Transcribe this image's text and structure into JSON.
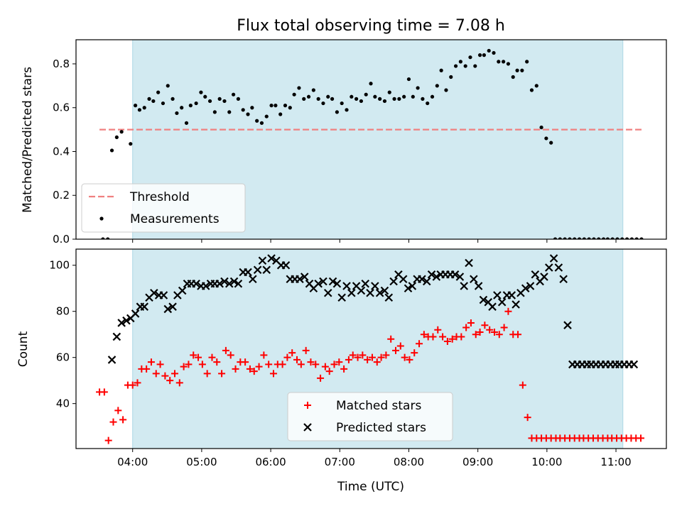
{
  "chart_data": {
    "title": "Flux total observing time = 7.08 h",
    "xlabel": "Time (UTC)",
    "x_ticks": [
      "04:00",
      "05:00",
      "06:00",
      "07:00",
      "08:00",
      "09:00",
      "10:00",
      "11:00"
    ],
    "x_tick_hours": [
      4,
      5,
      6,
      7,
      8,
      9,
      10,
      11
    ],
    "xlim": [
      3.18,
      11.73
    ],
    "shaded_span": [
      4.0,
      11.1
    ],
    "colors": {
      "shade": "#add8e6",
      "threshold": "#f08080",
      "measurements": "#000000",
      "matched": "#ff0000",
      "predicted": "#000000"
    },
    "panels": [
      {
        "type": "scatter",
        "ylabel": "Matched/Predicted stars",
        "ylim": [
          0,
          0.91
        ],
        "y_ticks": [
          "0.0",
          "0.2",
          "0.4",
          "0.6",
          "0.8"
        ],
        "y_tick_values": [
          0.0,
          0.2,
          0.4,
          0.6,
          0.8
        ],
        "threshold": {
          "y": 0.5,
          "x_range": [
            3.52,
            11.37
          ]
        },
        "legend": {
          "position": "lower-left",
          "entries": [
            "Threshold",
            "Measurements"
          ]
        },
        "series": [
          {
            "name": "Measurements",
            "marker": "dot",
            "x": [
              3.57,
              3.64,
              3.7,
              3.77,
              3.84,
              3.97,
              4.04,
              4.1,
              4.17,
              4.24,
              4.3,
              4.37,
              4.44,
              4.51,
              4.58,
              4.64,
              4.71,
              4.78,
              4.84,
              4.92,
              4.99,
              5.05,
              5.12,
              5.19,
              5.26,
              5.33,
              5.4,
              5.46,
              5.53,
              5.6,
              5.67,
              5.73,
              5.8,
              5.87,
              5.94,
              6.01,
              6.07,
              6.14,
              6.21,
              6.28,
              6.34,
              6.41,
              6.48,
              6.55,
              6.62,
              6.69,
              6.76,
              6.83,
              6.89,
              6.96,
              7.03,
              7.1,
              7.17,
              7.24,
              7.31,
              7.38,
              7.45,
              7.51,
              7.58,
              7.65,
              7.72,
              7.79,
              7.86,
              7.93,
              8.0,
              8.06,
              8.13,
              8.2,
              8.27,
              8.34,
              8.41,
              8.47,
              8.54,
              8.61,
              8.68,
              8.75,
              8.82,
              8.89,
              8.96,
              9.03,
              9.09,
              9.16,
              9.23,
              9.3,
              9.37,
              9.44,
              9.51,
              9.57,
              9.64,
              9.71,
              9.78,
              9.85,
              9.92,
              9.99,
              10.06,
              10.12,
              10.19,
              10.26,
              10.33,
              10.4,
              10.47,
              10.54,
              10.61,
              10.68,
              10.75,
              10.82,
              10.88,
              10.95,
              11.02,
              11.09,
              11.16,
              11.23,
              11.3,
              11.37
            ],
            "y": [
              0.0,
              0.0,
              0.405,
              0.465,
              0.49,
              0.435,
              0.61,
              0.59,
              0.6,
              0.64,
              0.63,
              0.67,
              0.62,
              0.7,
              0.64,
              0.575,
              0.6,
              0.53,
              0.61,
              0.62,
              0.67,
              0.65,
              0.63,
              0.58,
              0.64,
              0.63,
              0.58,
              0.66,
              0.64,
              0.59,
              0.57,
              0.6,
              0.54,
              0.53,
              0.56,
              0.61,
              0.61,
              0.57,
              0.61,
              0.6,
              0.66,
              0.69,
              0.64,
              0.65,
              0.68,
              0.64,
              0.62,
              0.65,
              0.64,
              0.58,
              0.62,
              0.59,
              0.65,
              0.64,
              0.63,
              0.66,
              0.71,
              0.65,
              0.64,
              0.63,
              0.67,
              0.64,
              0.64,
              0.65,
              0.73,
              0.65,
              0.69,
              0.64,
              0.62,
              0.65,
              0.7,
              0.77,
              0.68,
              0.74,
              0.79,
              0.81,
              0.79,
              0.83,
              0.79,
              0.84,
              0.84,
              0.86,
              0.85,
              0.81,
              0.81,
              0.8,
              0.74,
              0.77,
              0.77,
              0.81,
              0.68,
              0.7,
              0.51,
              0.46,
              0.44,
              0.0,
              0.0,
              0.0,
              0.0,
              0.0,
              0.0,
              0.0,
              0.0,
              0.0,
              0.0,
              0.0,
              0.0,
              0.0,
              0.0,
              0.0,
              0.0,
              0.0,
              0.0,
              0.0
            ]
          }
        ]
      },
      {
        "type": "scatter",
        "ylabel": "Count",
        "ylim": [
          20.5,
          107
        ],
        "y_ticks": [
          "40",
          "60",
          "80",
          "100"
        ],
        "y_tick_values": [
          40,
          60,
          80,
          100
        ],
        "legend": {
          "position": "lower-center",
          "entries": [
            "Matched stars",
            "Predicted stars"
          ]
        },
        "series": [
          {
            "name": "Matched stars",
            "marker": "plus",
            "x": [
              3.52,
              3.59,
              3.65,
              3.72,
              3.79,
              3.86,
              3.93,
              4.0,
              4.07,
              4.13,
              4.2,
              4.27,
              4.34,
              4.4,
              4.47,
              4.54,
              4.61,
              4.68,
              4.74,
              4.81,
              4.88,
              4.95,
              5.01,
              5.08,
              5.15,
              5.22,
              5.29,
              5.35,
              5.42,
              5.49,
              5.56,
              5.63,
              5.7,
              5.76,
              5.83,
              5.9,
              5.97,
              6.04,
              6.1,
              6.17,
              6.24,
              6.31,
              6.38,
              6.44,
              6.51,
              6.58,
              6.65,
              6.72,
              6.79,
              6.85,
              6.92,
              6.99,
              7.06,
              7.13,
              7.19,
              7.26,
              7.33,
              7.4,
              7.47,
              7.54,
              7.6,
              7.67,
              7.74,
              7.81,
              7.88,
              7.94,
              8.01,
              8.08,
              8.15,
              8.22,
              8.28,
              8.35,
              8.42,
              8.49,
              8.56,
              8.63,
              8.69,
              8.76,
              8.83,
              8.9,
              8.97,
              9.03,
              9.1,
              9.17,
              9.24,
              9.31,
              9.38,
              9.44,
              9.51,
              9.58,
              9.65,
              9.72,
              9.78,
              9.85,
              9.92,
              9.99,
              10.06,
              10.13,
              10.19,
              10.26,
              10.33,
              10.4,
              10.47,
              10.53,
              10.6,
              10.67,
              10.74,
              10.81,
              10.88,
              10.94,
              11.01,
              11.08,
              11.15,
              11.22,
              11.29,
              11.36
            ],
            "y": [
              45,
              45,
              24,
              32,
              37,
              33,
              48,
              48,
              49,
              55,
              55,
              58,
              53,
              57,
              52,
              50,
              53,
              49,
              56,
              57,
              61,
              60,
              57,
              53,
              60,
              58,
              53,
              63,
              61,
              55,
              58,
              58,
              55,
              54,
              56,
              61,
              57,
              53,
              57,
              57,
              60,
              62,
              59,
              57,
              63,
              58,
              57,
              51,
              56,
              54,
              57,
              58,
              55,
              59,
              61,
              60,
              61,
              59,
              60,
              58,
              60,
              61,
              68,
              63,
              65,
              60,
              59,
              62,
              66,
              70,
              69,
              69,
              72,
              69,
              67,
              68,
              69,
              69,
              73,
              75,
              70,
              71,
              74,
              72,
              71,
              70,
              73,
              80,
              70,
              70,
              48,
              34,
              25,
              25,
              25,
              25,
              25,
              25,
              25,
              25,
              25,
              25,
              25,
              25,
              25,
              25,
              25,
              25,
              25,
              25,
              25,
              25,
              25,
              25,
              25,
              25
            ]
          },
          {
            "name": "Predicted stars",
            "marker": "x",
            "x": [
              3.7,
              3.77,
              3.84,
              3.91,
              3.97,
              4.04,
              4.11,
              4.17,
              4.24,
              4.31,
              4.38,
              4.45,
              4.51,
              4.58,
              4.65,
              4.72,
              4.79,
              4.85,
              4.92,
              4.99,
              5.06,
              5.13,
              5.19,
              5.26,
              5.33,
              5.4,
              5.47,
              5.53,
              5.6,
              5.67,
              5.74,
              5.81,
              5.88,
              5.94,
              6.01,
              6.08,
              6.15,
              6.22,
              6.28,
              6.35,
              6.42,
              6.49,
              6.56,
              6.62,
              6.69,
              6.76,
              6.83,
              6.9,
              6.96,
              7.03,
              7.1,
              7.17,
              7.24,
              7.31,
              7.37,
              7.44,
              7.51,
              7.58,
              7.65,
              7.71,
              7.78,
              7.85,
              7.92,
              7.99,
              8.05,
              8.12,
              8.19,
              8.26,
              8.33,
              8.4,
              8.46,
              8.53,
              8.6,
              8.67,
              8.74,
              8.8,
              8.87,
              8.94,
              9.01,
              9.08,
              9.15,
              9.21,
              9.28,
              9.35,
              9.42,
              9.49,
              9.55,
              9.62,
              9.69,
              9.76,
              9.83,
              9.9,
              9.96,
              10.03,
              10.1,
              10.17,
              10.24,
              10.3,
              10.37,
              10.44,
              10.51,
              10.58,
              10.64,
              10.71,
              10.78,
              10.85,
              10.92,
              10.99,
              11.05,
              11.12,
              11.19,
              11.26
            ],
            "y": [
              59,
              69,
              75,
              76,
              77,
              79,
              82,
              82,
              86,
              88,
              87,
              87,
              81,
              82,
              87,
              89,
              92,
              92,
              92,
              91,
              91,
              92,
              92,
              92,
              93,
              92,
              93,
              92,
              97,
              97,
              94,
              98,
              102,
              98,
              103,
              102,
              100,
              100,
              94,
              94,
              94,
              95,
              92,
              90,
              92,
              93,
              88,
              93,
              92,
              86,
              91,
              88,
              91,
              89,
              92,
              88,
              91,
              88,
              89,
              86,
              93,
              96,
              94,
              90,
              91,
              94,
              94,
              93,
              96,
              95,
              96,
              96,
              96,
              96,
              95,
              91,
              101,
              94,
              91,
              85,
              84,
              82,
              87,
              84,
              87,
              87,
              83,
              88,
              90,
              91,
              96,
              93,
              95,
              99,
              103,
              99,
              94,
              74,
              57,
              57,
              57,
              57,
              57,
              57,
              57,
              57,
              57,
              57,
              57,
              57,
              57,
              57
            ]
          }
        ]
      }
    ]
  }
}
